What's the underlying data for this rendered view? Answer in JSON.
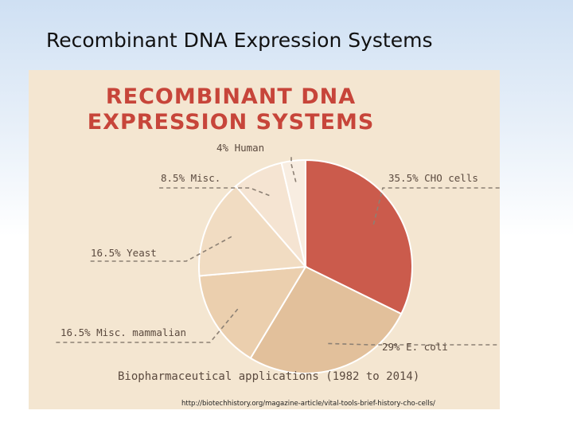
{
  "slide": {
    "title": "Recombinant DNA Expression Systems"
  },
  "chart_data": {
    "type": "pie",
    "title": [
      "RECOMBINANT DNA",
      "EXPRESSION SYSTEMS"
    ],
    "caption": "Biopharmaceutical applications (1982 to 2014)",
    "source": "http://biotechhistory.org/magazine-article/vital-tools-brief-history-cho-cells/",
    "slices": [
      {
        "label": "35.5% CHO cells",
        "value": 35.5,
        "color": "#cb5b4c"
      },
      {
        "label": "29% E. coli",
        "value": 29,
        "color": "#e2c09b"
      },
      {
        "label": "16.5% Misc. mammalian",
        "value": 16.5,
        "color": "#ebcfae"
      },
      {
        "label": "16.5% Yeast",
        "value": 16.5,
        "color": "#f1dcc2"
      },
      {
        "label": "8.5% Misc.",
        "value": 8.5,
        "color": "#f5e4d2"
      },
      {
        "label": "4% Human",
        "value": 4,
        "color": "#f8ede1"
      }
    ]
  }
}
